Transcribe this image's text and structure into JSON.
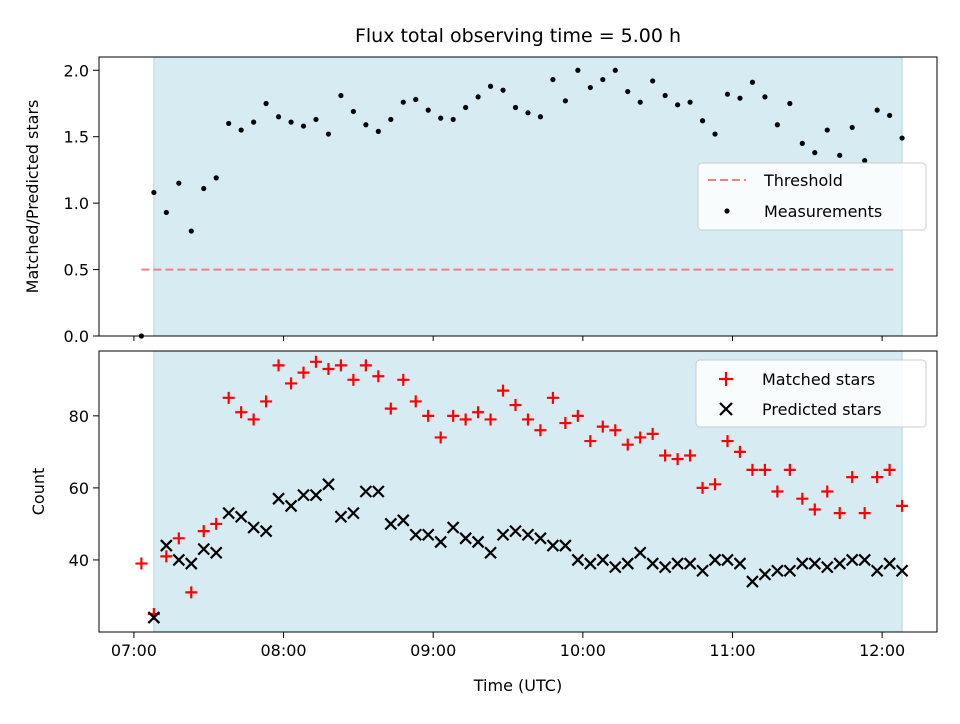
{
  "figure_title": "Flux total observing time = 5.00 h",
  "colors": {
    "observing_window": "#add8e6",
    "threshold": "#f08080",
    "measurements": "#000000",
    "matched": "#ff0000",
    "predicted": "#000000"
  },
  "chart_data": [
    {
      "type": "scatter",
      "panel": "top",
      "ylabel": "Matched/Predicted stars",
      "xlabel": "",
      "ylim": [
        0,
        2.1
      ],
      "yticks": [
        "0.0",
        "0.5",
        "1.0",
        "1.5",
        "2.0"
      ],
      "ytick_values": [
        0,
        0.5,
        1.0,
        1.5,
        2.0
      ],
      "xlim": [
        "06:46",
        "12:22"
      ],
      "observing_window": [
        "07:08",
        "12:08"
      ],
      "legend_position": "center-right",
      "threshold": {
        "name": "Threshold",
        "y": 0.5,
        "x": [
          "07:03",
          "12:06"
        ],
        "style": "dashed"
      },
      "series": [
        {
          "name": "Measurements",
          "marker": "dot",
          "x": [
            "07:03",
            "07:08",
            "07:13",
            "07:18",
            "07:23",
            "07:28",
            "07:33",
            "07:38",
            "07:43",
            "07:48",
            "07:53",
            "07:58",
            "08:03",
            "08:08",
            "08:13",
            "08:18",
            "08:23",
            "08:28",
            "08:33",
            "08:38",
            "08:43",
            "08:48",
            "08:53",
            "08:58",
            "09:03",
            "09:08",
            "09:13",
            "09:18",
            "09:23",
            "09:28",
            "09:33",
            "09:38",
            "09:43",
            "09:48",
            "09:53",
            "09:58",
            "10:03",
            "10:08",
            "10:13",
            "10:18",
            "10:23",
            "10:28",
            "10:33",
            "10:38",
            "10:43",
            "10:48",
            "10:53",
            "10:58",
            "11:03",
            "11:08",
            "11:13",
            "11:18",
            "11:23",
            "11:28",
            "11:33",
            "11:38",
            "11:43",
            "11:48",
            "11:53",
            "11:58",
            "12:03",
            "12:08"
          ],
          "y": [
            0.0,
            1.08,
            0.93,
            1.15,
            0.79,
            1.11,
            1.19,
            1.6,
            1.55,
            1.61,
            1.75,
            1.65,
            1.61,
            1.58,
            1.63,
            1.52,
            1.81,
            1.69,
            1.59,
            1.54,
            1.63,
            1.76,
            1.78,
            1.7,
            1.64,
            1.63,
            1.72,
            1.8,
            1.88,
            1.85,
            1.72,
            1.68,
            1.65,
            1.93,
            1.77,
            2.0,
            1.87,
            1.93,
            2.0,
            1.84,
            1.76,
            1.92,
            1.81,
            1.74,
            1.76,
            1.62,
            1.52,
            1.82,
            1.79,
            1.91,
            1.8,
            1.59,
            1.75,
            1.45,
            1.38,
            1.55,
            1.36,
            1.57,
            1.32,
            1.7,
            1.66,
            1.49
          ]
        }
      ]
    },
    {
      "type": "scatter",
      "panel": "bottom",
      "ylabel": "Count",
      "xlabel": "Time (UTC)",
      "ylim": [
        20,
        98
      ],
      "yticks": [
        "40",
        "60",
        "80"
      ],
      "ytick_values": [
        40,
        60,
        80
      ],
      "xlim": [
        "06:46",
        "12:22"
      ],
      "xticks": [
        "07:00",
        "08:00",
        "09:00",
        "10:00",
        "11:00",
        "12:00"
      ],
      "observing_window": [
        "07:08",
        "12:08"
      ],
      "legend_position": "top-right",
      "x": [
        "07:03",
        "07:08",
        "07:13",
        "07:18",
        "07:23",
        "07:28",
        "07:33",
        "07:38",
        "07:43",
        "07:48",
        "07:53",
        "07:58",
        "08:03",
        "08:08",
        "08:13",
        "08:18",
        "08:23",
        "08:28",
        "08:33",
        "08:38",
        "08:43",
        "08:48",
        "08:53",
        "08:58",
        "09:03",
        "09:08",
        "09:13",
        "09:18",
        "09:23",
        "09:28",
        "09:33",
        "09:38",
        "09:43",
        "09:48",
        "09:53",
        "09:58",
        "10:03",
        "10:08",
        "10:13",
        "10:18",
        "10:23",
        "10:28",
        "10:33",
        "10:38",
        "10:43",
        "10:48",
        "10:53",
        "10:58",
        "11:03",
        "11:08",
        "11:13",
        "11:18",
        "11:23",
        "11:28",
        "11:33",
        "11:38",
        "11:43",
        "11:48",
        "11:53",
        "11:58",
        "12:03",
        "12:08"
      ],
      "series": [
        {
          "name": "Matched stars",
          "marker": "plus",
          "values": [
            39,
            25,
            41,
            46,
            31,
            48,
            50,
            85,
            81,
            79,
            84,
            94,
            89,
            92,
            95,
            93,
            94,
            90,
            94,
            91,
            82,
            90,
            84,
            80,
            74,
            80,
            79,
            81,
            79,
            87,
            83,
            79,
            76,
            85,
            78,
            80,
            73,
            77,
            76,
            72,
            74,
            75,
            69,
            68,
            69,
            60,
            61,
            73,
            70,
            65,
            65,
            59,
            65,
            57,
            54,
            59,
            53,
            63,
            53,
            63,
            65,
            55
          ]
        },
        {
          "name": "Predicted stars",
          "marker": "x",
          "values": [
            null,
            24,
            44,
            40,
            39,
            43,
            42,
            53,
            52,
            49,
            48,
            57,
            55,
            58,
            58,
            61,
            52,
            53,
            59,
            59,
            50,
            51,
            47,
            47,
            45,
            49,
            46,
            45,
            42,
            47,
            48,
            47,
            46,
            44,
            44,
            40,
            39,
            40,
            38,
            39,
            42,
            39,
            38,
            39,
            39,
            37,
            40,
            40,
            39,
            34,
            36,
            37,
            37,
            39,
            39,
            38,
            39,
            40,
            40,
            37,
            39,
            37
          ]
        }
      ]
    }
  ]
}
